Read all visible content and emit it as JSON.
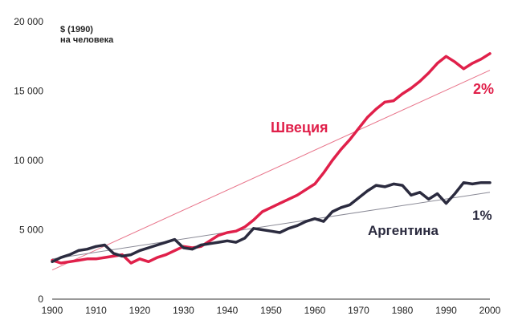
{
  "chart_data": {
    "type": "line",
    "title": "",
    "xlabel": "",
    "ylabel": "",
    "unit_line1": "$ (1990)",
    "unit_line2": "на человека",
    "xlim": [
      1900,
      2000
    ],
    "ylim": [
      0,
      20000
    ],
    "x_ticks": [
      "1900",
      "1910",
      "1920",
      "1930",
      "1940",
      "1950",
      "1960",
      "1970",
      "1980",
      "1990",
      "2000"
    ],
    "y_ticks": [
      "0",
      "5 000",
      "10 000",
      "15 000",
      "20 000"
    ],
    "grid": false,
    "series": [
      {
        "name": "Швеция",
        "color": "#e0204a",
        "x": [
          1900,
          1902,
          1904,
          1906,
          1908,
          1910,
          1912,
          1914,
          1916,
          1918,
          1920,
          1922,
          1924,
          1926,
          1928,
          1930,
          1932,
          1934,
          1936,
          1938,
          1940,
          1942,
          1944,
          1946,
          1948,
          1950,
          1952,
          1954,
          1956,
          1958,
          1960,
          1962,
          1964,
          1966,
          1968,
          1970,
          1972,
          1974,
          1976,
          1978,
          1980,
          1982,
          1984,
          1986,
          1988,
          1990,
          1992,
          1994,
          1996,
          1998,
          2000
        ],
        "values": [
          2800,
          2600,
          2700,
          2800,
          2900,
          2900,
          3000,
          3100,
          3200,
          2600,
          2900,
          2700,
          3000,
          3200,
          3500,
          3800,
          3700,
          3800,
          4200,
          4600,
          4800,
          4900,
          5200,
          5700,
          6300,
          6600,
          6900,
          7200,
          7500,
          7900,
          8300,
          9100,
          10000,
          10800,
          11500,
          12300,
          13100,
          13700,
          14200,
          14300,
          14800,
          15200,
          15700,
          16300,
          17000,
          17500,
          17100,
          16600,
          17000,
          17300,
          17700
        ]
      },
      {
        "name": "Аргентина",
        "color": "#2b2b3f",
        "x": [
          1900,
          1902,
          1904,
          1906,
          1908,
          1910,
          1912,
          1914,
          1916,
          1918,
          1920,
          1922,
          1924,
          1926,
          1928,
          1930,
          1932,
          1934,
          1936,
          1938,
          1940,
          1942,
          1944,
          1946,
          1948,
          1950,
          1952,
          1954,
          1956,
          1958,
          1960,
          1962,
          1964,
          1966,
          1968,
          1970,
          1972,
          1974,
          1976,
          1978,
          1980,
          1982,
          1984,
          1986,
          1988,
          1990,
          1992,
          1994,
          1996,
          1998,
          2000
        ],
        "values": [
          2700,
          3000,
          3200,
          3500,
          3600,
          3800,
          3900,
          3300,
          3100,
          3200,
          3500,
          3700,
          3900,
          4100,
          4300,
          3700,
          3600,
          3900,
          4000,
          4100,
          4200,
          4100,
          4400,
          5100,
          5000,
          4900,
          4800,
          5100,
          5300,
          5600,
          5800,
          5600,
          6300,
          6600,
          6800,
          7300,
          7800,
          8200,
          8100,
          8300,
          8200,
          7500,
          7700,
          7200,
          7600,
          6900,
          7600,
          8400,
          8300,
          8400,
          8400
        ]
      }
    ],
    "trendlines": [
      {
        "series": "Швеция",
        "label": "2%",
        "from": [
          1900,
          2100
        ],
        "to": [
          2000,
          16500
        ]
      },
      {
        "series": "Аргентина",
        "label": "1%",
        "from": [
          1900,
          2900
        ],
        "to": [
          2000,
          7700
        ]
      }
    ],
    "annotations": [
      {
        "text": "Швеция",
        "color": "#e0204a"
      },
      {
        "text": "Аргентина",
        "color": "#2b2b3f"
      },
      {
        "text": "2%",
        "color": "#e0204a"
      },
      {
        "text": "1%",
        "color": "#2b2b3f"
      }
    ]
  }
}
